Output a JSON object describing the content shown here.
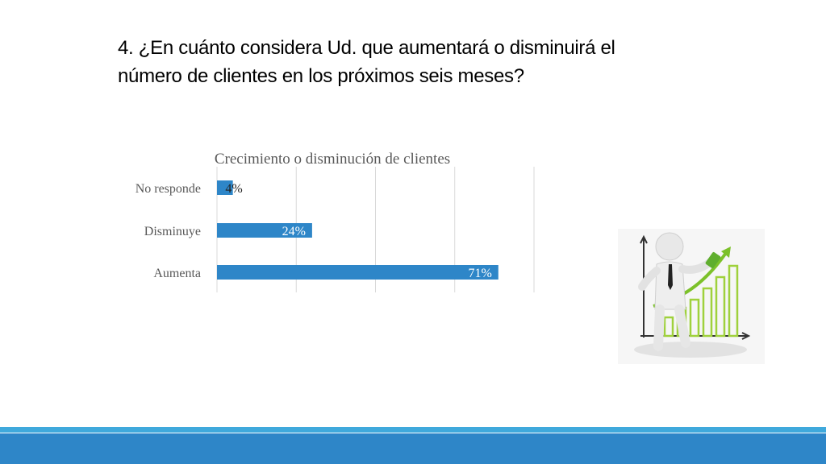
{
  "slide": {
    "title_line1": "4. ¿En cuánto considera Ud. que aumentará o disminuirá el",
    "title_line2": "número de clientes en los próximos seis meses?"
  },
  "chart_data": {
    "type": "bar",
    "orientation": "horizontal",
    "title": "Crecimiento o disminución de clientes",
    "categories": [
      "No responde",
      "Disminuye",
      "Aumenta"
    ],
    "values": [
      4,
      24,
      71
    ],
    "data_labels": [
      "4%",
      "24%",
      "71%"
    ],
    "xlim": [
      0,
      80
    ],
    "grid": true,
    "legend": "none",
    "bar_color": "#2e86c8"
  },
  "illustration": {
    "icon": "businessman-growth-chart-icon"
  },
  "colors": {
    "footer_accent": "#3fa9dc",
    "footer_main": "#2e86c8"
  }
}
